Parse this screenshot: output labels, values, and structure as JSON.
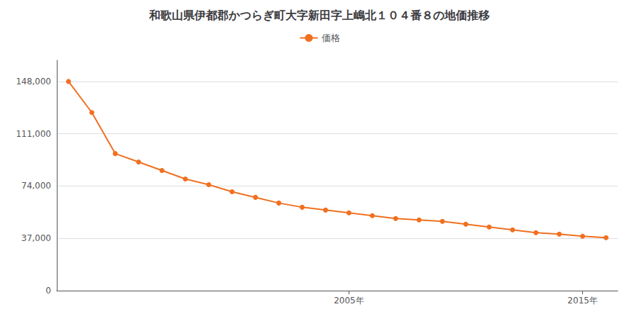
{
  "chart_data": {
    "type": "line",
    "title": "和歌山県伊都郡かつらぎ町大字新田字上嶋北１０４番８の地価推移",
    "x": [
      1993,
      1994,
      1995,
      1996,
      1997,
      1998,
      1999,
      2000,
      2001,
      2002,
      2003,
      2004,
      2005,
      2006,
      2007,
      2008,
      2009,
      2010,
      2011,
      2012,
      2013,
      2014,
      2015,
      2016
    ],
    "series": [
      {
        "name": "価格",
        "color": "#f07020",
        "marker": "circle",
        "values": [
          148000,
          126000,
          97000,
          91000,
          85000,
          79000,
          75000,
          70000,
          66000,
          62000,
          59000,
          57000,
          55000,
          53000,
          51000,
          50000,
          49000,
          47000,
          45000,
          43000,
          41000,
          40000,
          38500,
          37500
        ]
      }
    ],
    "xlim": [
      1992.5,
      2016.5
    ],
    "xticks": [
      {
        "value": 2005,
        "label": "2005年"
      },
      {
        "value": 2015,
        "label": "2015年"
      }
    ],
    "ylim": [
      0,
      163000
    ],
    "yticks": [
      0,
      {
        "value": 37000,
        "label": "37,000"
      },
      {
        "value": 74000,
        "label": "74,000"
      },
      {
        "value": 111000,
        "label": "111,000"
      },
      {
        "value": 148000,
        "label": "148,000"
      }
    ],
    "grid": "y",
    "legend": "top"
  }
}
